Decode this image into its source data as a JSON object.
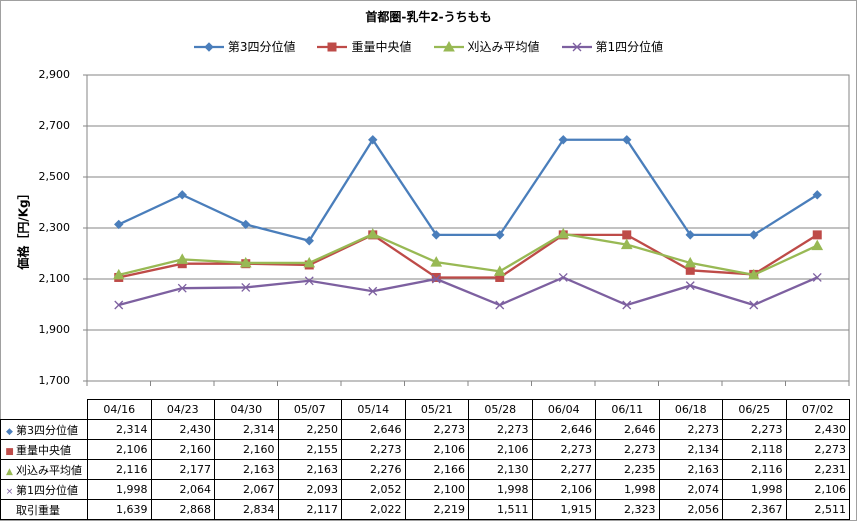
{
  "chart_data": {
    "type": "line",
    "title": "首都圏-乳牛2-うちもも",
    "ylabel": "価格［円/Kg］",
    "xlabel": "",
    "ylim": [
      1700,
      2900
    ],
    "yticks": [
      "1,700",
      "1,900",
      "2,100",
      "2,300",
      "2,500",
      "2,700",
      "2,900"
    ],
    "categories": [
      "04/16",
      "04/23",
      "04/30",
      "05/07",
      "05/14",
      "05/21",
      "05/28",
      "06/04",
      "06/11",
      "06/18",
      "06/25",
      "07/02"
    ],
    "grid": true,
    "legend_position": "top",
    "series": [
      {
        "name": "第3四分位値",
        "color": "#4a7ebb",
        "marker": "diamond",
        "values": [
          2314,
          2430,
          2314,
          2250,
          2646,
          2273,
          2273,
          2646,
          2646,
          2273,
          2273,
          2430
        ]
      },
      {
        "name": "重量中央値",
        "color": "#be4b48",
        "marker": "square",
        "values": [
          2106,
          2160,
          2160,
          2155,
          2273,
          2106,
          2106,
          2273,
          2273,
          2134,
          2118,
          2273
        ]
      },
      {
        "name": "刈込み平均値",
        "color": "#98b954",
        "marker": "triangle",
        "values": [
          2116,
          2177,
          2163,
          2163,
          2276,
          2166,
          2130,
          2277,
          2235,
          2163,
          2116,
          2231
        ]
      },
      {
        "name": "第1四分位値",
        "color": "#7d60a0",
        "marker": "x",
        "values": [
          1998,
          2064,
          2067,
          2093,
          2052,
          2100,
          1998,
          2106,
          1998,
          2074,
          1998,
          2106
        ]
      }
    ],
    "table": {
      "headers": [
        "04/16",
        "04/23",
        "04/30",
        "05/07",
        "05/14",
        "05/21",
        "05/28",
        "06/04",
        "06/11",
        "06/18",
        "06/25",
        "07/02"
      ],
      "rows": [
        {
          "label": "第3四分位値",
          "marker": "diamond",
          "color": "#4a7ebb",
          "cells": [
            "2,314",
            "2,430",
            "2,314",
            "2,250",
            "2,646",
            "2,273",
            "2,273",
            "2,646",
            "2,646",
            "2,273",
            "2,273",
            "2,430"
          ]
        },
        {
          "label": "重量中央値",
          "marker": "square",
          "color": "#be4b48",
          "cells": [
            "2,106",
            "2,160",
            "2,160",
            "2,155",
            "2,273",
            "2,106",
            "2,106",
            "2,273",
            "2,273",
            "2,134",
            "2,118",
            "2,273"
          ]
        },
        {
          "label": "刈込み平均値",
          "marker": "triangle",
          "color": "#98b954",
          "cells": [
            "2,116",
            "2,177",
            "2,163",
            "2,163",
            "2,276",
            "2,166",
            "2,130",
            "2,277",
            "2,235",
            "2,163",
            "2,116",
            "2,231"
          ]
        },
        {
          "label": "第1四分位値",
          "marker": "x",
          "color": "#7d60a0",
          "cells": [
            "1,998",
            "2,064",
            "2,067",
            "2,093",
            "2,052",
            "2,100",
            "1,998",
            "2,106",
            "1,998",
            "2,074",
            "1,998",
            "2,106"
          ]
        },
        {
          "label": "取引重量",
          "marker": "",
          "color": "",
          "cells": [
            "1,639",
            "2,868",
            "2,834",
            "2,117",
            "2,022",
            "2,219",
            "1,511",
            "1,915",
            "2,323",
            "2,056",
            "2,367",
            "2,511"
          ]
        }
      ]
    }
  }
}
